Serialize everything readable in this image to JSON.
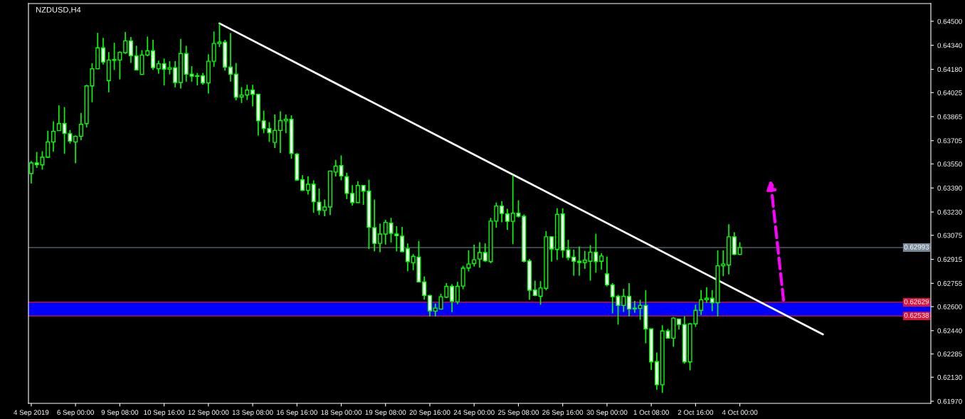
{
  "chart_data": {
    "type": "candlestick",
    "title": "NZDUSD,H4",
    "categories": [
      "4 Sep 2019",
      null,
      null,
      null,
      null,
      null,
      null,
      null,
      "6 Sep 00:00",
      null,
      null,
      null,
      null,
      null,
      null,
      null,
      "9 Sep 08:00",
      null,
      null,
      null,
      null,
      null,
      null,
      null,
      "10 Sep 16:00",
      null,
      null,
      null,
      null,
      null,
      null,
      null,
      "12 Sep 00:00",
      null,
      null,
      null,
      null,
      null,
      null,
      null,
      "13 Sep 08:00",
      null,
      null,
      null,
      null,
      null,
      null,
      null,
      "16 Sep 16:00",
      null,
      null,
      null,
      null,
      null,
      null,
      null,
      "18 Sep 00:00",
      null,
      null,
      null,
      null,
      null,
      null,
      null,
      "19 Sep 08:00",
      null,
      null,
      null,
      null,
      null,
      null,
      null,
      "20 Sep 16:00",
      null,
      null,
      null,
      null,
      null,
      null,
      null,
      "24 Sep 00:00",
      null,
      null,
      null,
      null,
      null,
      null,
      null,
      "25 Sep 08:00",
      null,
      null,
      null,
      null,
      null,
      null,
      null,
      "26 Sep 16:00",
      null,
      null,
      null,
      null,
      null,
      null,
      null,
      "30 Sep 00:00",
      null,
      null,
      null,
      null,
      null,
      null,
      null,
      "1 Oct 08:00",
      null,
      null,
      null,
      null,
      null,
      null,
      null,
      "2 Oct 16:00",
      null,
      null,
      null,
      null,
      null,
      null,
      null,
      "4 Oct 00:00",
      null,
      null,
      null,
      null,
      null,
      null,
      null,
      null,
      null,
      null,
      null,
      null,
      null,
      null,
      null,
      null,
      null,
      null,
      null,
      null,
      null,
      null,
      null,
      null,
      null,
      null,
      null,
      null,
      null,
      null,
      null,
      null,
      null,
      null
    ],
    "series": [
      {
        "color": "#00ff00",
        "ohlc": [
          [
            0.63486,
            0.6357,
            0.6342,
            0.63557
          ],
          [
            0.63557,
            0.6363,
            0.63524,
            0.63545
          ],
          [
            0.63544,
            0.63635,
            0.63512,
            0.63595
          ],
          [
            0.63595,
            0.63772,
            0.6359,
            0.63696
          ],
          [
            0.63696,
            0.63834,
            0.63631,
            0.63767
          ],
          [
            0.63772,
            0.6394,
            0.6377,
            0.63819
          ],
          [
            0.63819,
            0.63928,
            0.63618,
            0.63753
          ],
          [
            0.63752,
            0.63776,
            0.63686,
            0.63702
          ],
          [
            0.63696,
            0.63739,
            0.63555,
            0.63734
          ],
          [
            0.63734,
            0.6389,
            0.63709,
            0.63814
          ],
          [
            0.63819,
            0.64077,
            0.63793,
            0.6407
          ],
          [
            0.6407,
            0.6422,
            0.63961,
            0.64184
          ],
          [
            0.64184,
            0.64423,
            0.64181,
            0.64323
          ],
          [
            0.64323,
            0.64389,
            0.64212,
            0.64229
          ],
          [
            0.64105,
            0.64295,
            0.64027,
            0.64242
          ],
          [
            0.6424,
            0.64357,
            0.64176,
            0.64245
          ],
          [
            0.64242,
            0.643,
            0.64113,
            0.64293
          ],
          [
            0.64291,
            0.64428,
            0.64283,
            0.6437
          ],
          [
            0.64369,
            0.64395,
            0.64222,
            0.64271
          ],
          [
            0.6427,
            0.64337,
            0.64174,
            0.64176
          ],
          [
            0.64146,
            0.64308,
            0.64143,
            0.64275
          ],
          [
            0.64275,
            0.64398,
            0.64267,
            0.64303
          ],
          [
            0.64303,
            0.64377,
            0.64176,
            0.64191
          ],
          [
            0.64184,
            0.64238,
            0.64151,
            0.64217
          ],
          [
            0.64217,
            0.64252,
            0.64073,
            0.64181
          ],
          [
            0.64181,
            0.64234,
            0.64146,
            0.64191
          ],
          [
            0.64191,
            0.64234,
            0.6406,
            0.64092
          ],
          [
            0.64092,
            0.64382,
            0.64052,
            0.64285
          ],
          [
            0.64285,
            0.64337,
            0.64098,
            0.64148
          ],
          [
            0.64148,
            0.64201,
            0.64098,
            0.64135
          ],
          [
            0.64138,
            0.64156,
            0.64073,
            0.64133
          ],
          [
            0.64138,
            0.64156,
            0.64078,
            0.6409
          ],
          [
            0.6409,
            0.6428,
            0.64019,
            0.64234
          ],
          [
            0.64234,
            0.64432,
            0.64197,
            0.64352
          ],
          [
            0.64351,
            0.64486,
            0.64328,
            0.64361
          ],
          [
            0.64361,
            0.64377,
            0.64171,
            0.64195
          ],
          [
            0.64195,
            0.64422,
            0.64098,
            0.64148
          ],
          [
            0.64148,
            0.64222,
            0.63974,
            0.63994
          ],
          [
            0.63996,
            0.64062,
            0.63956,
            0.64009
          ],
          [
            0.64009,
            0.64077,
            0.63976,
            0.64042
          ],
          [
            0.64042,
            0.64077,
            0.63933,
            0.64014
          ],
          [
            0.64014,
            0.64017,
            0.63739,
            0.63837
          ],
          [
            0.63837,
            0.63905,
            0.63755,
            0.63786
          ],
          [
            0.63786,
            0.63829,
            0.63697,
            0.63758
          ],
          [
            0.63694,
            0.6388,
            0.63656,
            0.63773
          ],
          [
            0.63773,
            0.639,
            0.63623,
            0.63839
          ],
          [
            0.63837,
            0.63879,
            0.63755,
            0.63847
          ],
          [
            0.63847,
            0.63874,
            0.63585,
            0.6362
          ],
          [
            0.63615,
            0.63623,
            0.63438,
            0.63443
          ],
          [
            0.63445,
            0.63475,
            0.6337,
            0.63374
          ],
          [
            0.63374,
            0.63468,
            0.63346,
            0.63415
          ],
          [
            0.63415,
            0.63441,
            0.63225,
            0.63298
          ],
          [
            0.63296,
            0.63387,
            0.6321,
            0.6324
          ],
          [
            0.6324,
            0.63313,
            0.63202,
            0.63263
          ],
          [
            0.63263,
            0.63504,
            0.6321,
            0.63503
          ],
          [
            0.63496,
            0.63577,
            0.63466,
            0.63536
          ],
          [
            0.63539,
            0.63607,
            0.63441,
            0.6347
          ],
          [
            0.63466,
            0.63491,
            0.63316,
            0.63354
          ],
          [
            0.63354,
            0.63409,
            0.63273,
            0.63293
          ],
          [
            0.63293,
            0.63435,
            0.6329,
            0.63407
          ],
          [
            0.63407,
            0.6341,
            0.63277,
            0.63369
          ],
          [
            0.63369,
            0.63445,
            0.62984,
            0.63128
          ],
          [
            0.63126,
            0.63313,
            0.62968,
            0.63021
          ],
          [
            0.63021,
            0.63153,
            0.62963,
            0.63083
          ],
          [
            0.63083,
            0.63178,
            0.63013,
            0.63161
          ],
          [
            0.63156,
            0.63191,
            0.63027,
            0.63088
          ],
          [
            0.63083,
            0.63136,
            0.62968,
            0.63072
          ],
          [
            0.63069,
            0.63131,
            0.62963,
            0.62966
          ],
          [
            0.62986,
            0.63021,
            0.62836,
            0.629
          ],
          [
            0.62892,
            0.6295,
            0.62843,
            0.62935
          ],
          [
            0.6293,
            0.63037,
            0.62762,
            0.62765
          ],
          [
            0.62765,
            0.62801,
            0.62647,
            0.62674
          ],
          [
            0.62674,
            0.62678,
            0.62534,
            0.62572
          ],
          [
            0.6257,
            0.6262,
            0.62534,
            0.6259
          ],
          [
            0.62584,
            0.62686,
            0.6258,
            0.62666
          ],
          [
            0.62663,
            0.62757,
            0.62658,
            0.62735
          ],
          [
            0.62735,
            0.62749,
            0.62564,
            0.62636
          ],
          [
            0.62633,
            0.62765,
            0.62617,
            0.62735
          ],
          [
            0.62737,
            0.62872,
            0.62716,
            0.62856
          ],
          [
            0.62857,
            0.62976,
            0.62834,
            0.62884
          ],
          [
            0.62887,
            0.63013,
            0.62867,
            0.62912
          ],
          [
            0.62917,
            0.63029,
            0.62859,
            0.6296
          ],
          [
            0.6296,
            0.63021,
            0.62897,
            0.62905
          ],
          [
            0.629,
            0.63191,
            0.62889,
            0.63169
          ],
          [
            0.63169,
            0.63293,
            0.63125,
            0.6327
          ],
          [
            0.6327,
            0.63301,
            0.63161,
            0.6322
          ],
          [
            0.63217,
            0.63252,
            0.63112,
            0.63168
          ],
          [
            0.63168,
            0.63473,
            0.63016,
            0.63222
          ],
          [
            0.63222,
            0.63308,
            0.63194,
            0.63202
          ],
          [
            0.63202,
            0.63214,
            0.62894,
            0.62902
          ],
          [
            0.62904,
            0.62917,
            0.62645,
            0.62709
          ],
          [
            0.6271,
            0.62773,
            0.62669,
            0.62674
          ],
          [
            0.62669,
            0.6277,
            0.62613,
            0.62724
          ],
          [
            0.62722,
            0.63103,
            0.62709,
            0.63065
          ],
          [
            0.63065,
            0.63068,
            0.629,
            0.62984
          ],
          [
            0.6298,
            0.63255,
            0.6291,
            0.63214
          ],
          [
            0.63217,
            0.63255,
            0.62925,
            0.62975
          ],
          [
            0.62978,
            0.63045,
            0.62909,
            0.62927
          ],
          [
            0.6293,
            0.6298,
            0.62806,
            0.62902
          ],
          [
            0.62902,
            0.63001,
            0.62806,
            0.62894
          ],
          [
            0.62894,
            0.62971,
            0.62852,
            0.62909
          ],
          [
            0.62902,
            0.63009,
            0.62773,
            0.62963
          ],
          [
            0.62963,
            0.63085,
            0.62826,
            0.629
          ],
          [
            0.62902,
            0.62955,
            0.62847,
            0.62937
          ],
          [
            0.62818,
            0.62933,
            0.62735,
            0.62745
          ],
          [
            0.62745,
            0.62757,
            0.62555,
            0.62666
          ],
          [
            0.62669,
            0.62679,
            0.6248,
            0.62608
          ],
          [
            0.62608,
            0.62719,
            0.62564,
            0.62669
          ],
          [
            0.62669,
            0.62757,
            0.62534,
            0.62584
          ],
          [
            0.62585,
            0.62638,
            0.62559,
            0.6259
          ],
          [
            0.62588,
            0.62646,
            0.62513,
            0.62608
          ],
          [
            0.62608,
            0.6271,
            0.62356,
            0.62452
          ],
          [
            0.62452,
            0.62455,
            0.62179,
            0.62232
          ],
          [
            0.62234,
            0.62295,
            0.62047,
            0.6208
          ],
          [
            0.6208,
            0.62476,
            0.62026,
            0.62438
          ],
          [
            0.62438,
            0.62452,
            0.62386,
            0.6239
          ],
          [
            0.6239,
            0.62531,
            0.62333,
            0.62524
          ],
          [
            0.62518,
            0.62521,
            0.62447,
            0.62481
          ],
          [
            0.62481,
            0.62537,
            0.6222,
            0.62232
          ],
          [
            0.62232,
            0.6249,
            0.62176,
            0.62485
          ],
          [
            0.62485,
            0.62613,
            0.62465,
            0.62575
          ],
          [
            0.62575,
            0.6271,
            0.62545,
            0.62646
          ],
          [
            0.62646,
            0.62729,
            0.62625,
            0.62656
          ],
          [
            0.62656,
            0.6271,
            0.6257,
            0.62626
          ],
          [
            0.62626,
            0.62975,
            0.62534,
            0.62872
          ],
          [
            0.62872,
            0.62975,
            0.62803,
            0.62884
          ],
          [
            0.62877,
            0.63148,
            0.62815,
            0.63065
          ],
          [
            0.63065,
            0.63095,
            0.62943,
            0.62948
          ],
          [
            0.62948,
            0.63029,
            0.62943,
            0.62993
          ],
          null,
          null,
          null,
          null,
          null,
          null,
          null,
          null,
          null,
          null,
          null,
          null,
          null,
          null,
          null,
          null,
          null,
          null,
          null,
          null,
          null,
          null,
          null,
          null,
          null,
          null,
          null,
          null,
          null,
          null,
          null,
          null,
          null,
          null
        ]
      },
      {
        "type": "line",
        "color": "#ffffff",
        "values": [
          null,
          null,
          null,
          null,
          null,
          null,
          null,
          null,
          null,
          null,
          null,
          null,
          null,
          null,
          null,
          null,
          null,
          null,
          null,
          null,
          null,
          null,
          null,
          null,
          null,
          null,
          null,
          null,
          null,
          null,
          null,
          null,
          null,
          null,
          0.64486,
          null,
          null,
          null,
          null,
          null,
          null,
          null,
          null,
          null,
          null,
          null,
          null,
          null,
          null,
          null,
          null,
          null,
          null,
          null,
          null,
          null,
          null,
          null,
          null,
          null,
          null,
          null,
          null,
          null,
          null,
          null,
          null,
          null,
          null,
          null,
          null,
          null,
          null,
          null,
          null,
          null,
          null,
          null,
          null,
          null,
          null,
          null,
          null,
          null,
          null,
          null,
          null,
          null,
          null,
          null,
          null,
          null,
          null,
          null,
          null,
          null,
          null,
          null,
          null,
          null,
          null,
          null,
          null,
          null,
          null,
          null,
          null,
          null,
          null,
          null,
          null,
          null,
          null,
          null,
          null,
          null,
          null,
          null,
          null,
          null,
          null,
          null,
          null,
          null,
          null,
          null,
          null,
          null,
          null,
          null,
          null,
          null,
          null,
          null,
          null,
          null,
          null,
          null,
          null,
          null,
          null,
          null,
          null,
          0.62415,
          null,
          null,
          null,
          null,
          null,
          null,
          null,
          null,
          null,
          null,
          null,
          null,
          null,
          null,
          null,
          null,
          null,
          null,
          null
        ]
      }
    ],
    "ylim": [
      0.61956,
      0.64618
    ],
    "yticks": [
      {
        "value": 0.645,
        "label": "0.64500"
      },
      {
        "value": 0.6434,
        "label": "0.64340"
      },
      {
        "value": 0.6418,
        "label": "0.64180"
      },
      {
        "value": 0.64025,
        "label": "0.64025"
      },
      {
        "value": 0.63865,
        "label": "0.63865"
      },
      {
        "value": 0.63705,
        "label": "0.63705"
      },
      {
        "value": 0.6355,
        "label": "0.63550"
      },
      {
        "value": 0.6339,
        "label": "0.63390"
      },
      {
        "value": 0.6323,
        "label": "0.63230"
      },
      {
        "value": 0.63075,
        "label": "0.63075"
      },
      {
        "value": 0.62915,
        "label": "0.62915"
      },
      {
        "value": 0.62755,
        "label": "0.62755"
      },
      {
        "value": 0.626,
        "label": "0.62600"
      },
      {
        "value": 0.6244,
        "label": "0.62440"
      },
      {
        "value": 0.62285,
        "label": "0.62285"
      },
      {
        "value": 0.6213,
        "label": "0.62130"
      },
      {
        "value": 0.6197,
        "label": "0.61970"
      }
    ],
    "ref_lines": [
      {
        "axis": "y",
        "value": 0.62993,
        "label": "0.62993",
        "color": "#778899"
      },
      {
        "axis": "y",
        "value": 0.62629,
        "label": "0.62629",
        "color": "#dc143c"
      },
      {
        "axis": "y",
        "value": 0.62538,
        "label": "0.62538",
        "color": "#dc143c"
      }
    ],
    "bands": [
      {
        "axis": "y",
        "from": 0.62538,
        "to": 0.62629,
        "color": "#0000ff"
      }
    ]
  }
}
